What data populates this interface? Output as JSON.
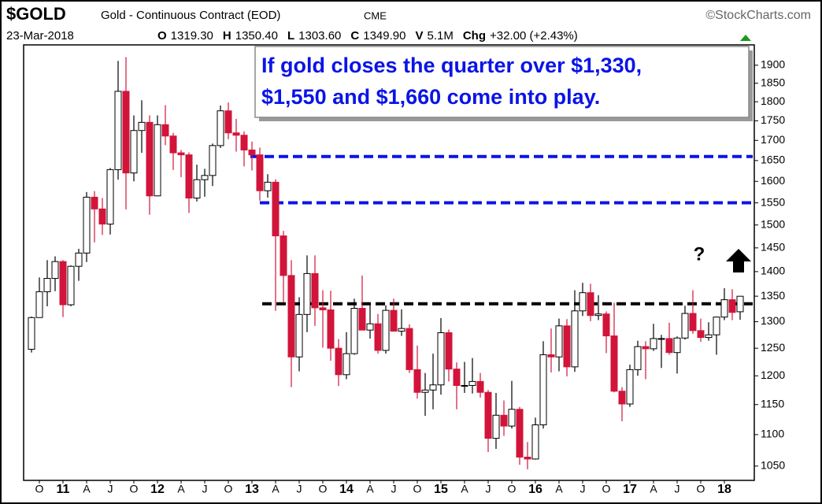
{
  "chart_data": {
    "type": "candlestick",
    "title": "$GOLD",
    "subtitle": "Gold - Continuous Contract (EOD)",
    "exchange": "CME",
    "source": "©StockCharts.com",
    "date": "23-Mar-2018",
    "quote": [
      {
        "label": "O",
        "value": "1319.30"
      },
      {
        "label": "H",
        "value": "1350.40"
      },
      {
        "label": "L",
        "value": "1303.60"
      },
      {
        "label": "C",
        "value": "1349.90"
      },
      {
        "label": "V",
        "value": "5.1M"
      },
      {
        "label": "Chg",
        "value": "+32.00 (+2.43%)"
      }
    ],
    "annotation": [
      "If gold closes the quarter over $1,330,",
      "$1,550 and $1,660 come into play."
    ],
    "question": "?",
    "x": [
      "2010-09",
      "2010-10",
      "2010-11",
      "2010-12",
      "2011-01",
      "2011-02",
      "2011-03",
      "2011-04",
      "2011-05",
      "2011-06",
      "2011-07",
      "2011-08",
      "2011-09",
      "2011-10",
      "2011-11",
      "2011-12",
      "2012-01",
      "2012-02",
      "2012-03",
      "2012-04",
      "2012-05",
      "2012-06",
      "2012-07",
      "2012-08",
      "2012-09",
      "2012-10",
      "2012-11",
      "2012-12",
      "2013-01",
      "2013-02",
      "2013-03",
      "2013-04",
      "2013-05",
      "2013-06",
      "2013-07",
      "2013-08",
      "2013-09",
      "2013-10",
      "2013-11",
      "2013-12",
      "2014-01",
      "2014-02",
      "2014-03",
      "2014-04",
      "2014-05",
      "2014-06",
      "2014-07",
      "2014-08",
      "2014-09",
      "2014-10",
      "2014-11",
      "2014-12",
      "2015-01",
      "2015-02",
      "2015-03",
      "2015-04",
      "2015-05",
      "2015-06",
      "2015-07",
      "2015-08",
      "2015-09",
      "2015-10",
      "2015-11",
      "2015-12",
      "2016-01",
      "2016-02",
      "2016-03",
      "2016-04",
      "2016-05",
      "2016-06",
      "2016-07",
      "2016-08",
      "2016-09",
      "2016-10",
      "2016-11",
      "2016-12",
      "2017-01",
      "2017-02",
      "2017-03",
      "2017-04",
      "2017-05",
      "2017-06",
      "2017-07",
      "2017-08",
      "2017-09",
      "2017-10",
      "2017-11",
      "2017-12",
      "2018-01",
      "2018-02",
      "2018-03"
    ],
    "open": [
      1248,
      1308,
      1359,
      1386,
      1421,
      1333,
      1411,
      1439,
      1563,
      1536,
      1502,
      1628,
      1828,
      1620,
      1725,
      1746,
      1566,
      1740,
      1711,
      1669,
      1664,
      1561,
      1604,
      1614,
      1687,
      1776,
      1719,
      1713,
      1676,
      1664,
      1578,
      1598,
      1476,
      1392,
      1234,
      1314,
      1396,
      1327,
      1323,
      1250,
      1202,
      1240,
      1326,
      1284,
      1296,
      1246,
      1322,
      1282,
      1287,
      1211,
      1171,
      1175,
      1184,
      1279,
      1212,
      1183,
      1183,
      1190,
      1171,
      1094,
      1132,
      1114,
      1142,
      1064,
      1061,
      1116,
      1238,
      1234,
      1292,
      1216,
      1321,
      1357,
      1312,
      1315,
      1273,
      1173,
      1151,
      1211,
      1253,
      1249,
      1268,
      1268,
      1242,
      1269,
      1316,
      1283,
      1270,
      1275,
      1309,
      1343,
      1319.3
    ],
    "high": [
      1310,
      1388,
      1424,
      1432,
      1424,
      1413,
      1448,
      1575,
      1577,
      1561,
      1632,
      1912,
      1923,
      1764,
      1804,
      1764,
      1764,
      1791,
      1719,
      1676,
      1670,
      1640,
      1630,
      1692,
      1790,
      1798,
      1755,
      1723,
      1697,
      1682,
      1617,
      1605,
      1487,
      1424,
      1348,
      1434,
      1434,
      1362,
      1361,
      1267,
      1280,
      1345,
      1392,
      1332,
      1315,
      1332,
      1345,
      1324,
      1295,
      1255,
      1205,
      1240,
      1307,
      1285,
      1224,
      1225,
      1232,
      1205,
      1175,
      1170,
      1157,
      1191,
      1146,
      1088,
      1128,
      1263,
      1287,
      1306,
      1305,
      1362,
      1377,
      1375,
      1352,
      1320,
      1337,
      1180,
      1220,
      1264,
      1263,
      1296,
      1275,
      1298,
      1272,
      1331,
      1362,
      1306,
      1299,
      1310,
      1366,
      1364,
      1350.4
    ],
    "low": [
      1242,
      1314,
      1330,
      1360,
      1309,
      1330,
      1381,
      1420,
      1462,
      1478,
      1479,
      1604,
      1535,
      1600,
      1669,
      1523,
      1565,
      1688,
      1627,
      1610,
      1527,
      1553,
      1564,
      1589,
      1681,
      1703,
      1672,
      1636,
      1626,
      1555,
      1562,
      1321,
      1339,
      1180,
      1208,
      1280,
      1292,
      1251,
      1227,
      1182,
      1194,
      1238,
      1286,
      1268,
      1240,
      1240,
      1281,
      1273,
      1205,
      1160,
      1131,
      1142,
      1167,
      1190,
      1142,
      1170,
      1169,
      1162,
      1072,
      1077,
      1098,
      1110,
      1052,
      1045,
      1060,
      1110,
      1206,
      1208,
      1199,
      1207,
      1311,
      1301,
      1303,
      1241,
      1171,
      1122,
      1146,
      1200,
      1194,
      1245,
      1214,
      1238,
      1204,
      1266,
      1277,
      1262,
      1264,
      1238,
      1303,
      1303,
      1303.6
    ],
    "close": [
      1308,
      1359,
      1386,
      1421,
      1333,
      1411,
      1439,
      1563,
      1536,
      1502,
      1628,
      1828,
      1620,
      1725,
      1746,
      1566,
      1740,
      1711,
      1669,
      1664,
      1561,
      1604,
      1614,
      1687,
      1776,
      1719,
      1713,
      1676,
      1664,
      1578,
      1598,
      1476,
      1392,
      1234,
      1314,
      1396,
      1327,
      1323,
      1250,
      1202,
      1240,
      1326,
      1284,
      1296,
      1246,
      1322,
      1282,
      1287,
      1211,
      1171,
      1175,
      1184,
      1279,
      1212,
      1183,
      1183,
      1190,
      1171,
      1094,
      1132,
      1114,
      1142,
      1064,
      1061,
      1116,
      1238,
      1234,
      1292,
      1216,
      1321,
      1357,
      1312,
      1315,
      1273,
      1173,
      1151,
      1211,
      1253,
      1249,
      1268,
      1268,
      1242,
      1269,
      1316,
      1283,
      1270,
      1275,
      1309,
      1343,
      1318,
      1349.9
    ],
    "up_color": "#ffffff",
    "down_color": "#d2143a",
    "levels": [
      {
        "value": 1660,
        "color": "#0a14e6"
      },
      {
        "value": 1550,
        "color": "#0a14e6"
      },
      {
        "value": 1335,
        "color": "#000000"
      }
    ],
    "log_scale": true,
    "ylim": [
      1028,
      1958
    ],
    "yticks": [
      1050,
      1100,
      1150,
      1200,
      1250,
      1300,
      1350,
      1400,
      1450,
      1500,
      1550,
      1600,
      1650,
      1700,
      1750,
      1800,
      1850,
      1900
    ],
    "xticks": [
      {
        "value": "2010-10",
        "label": "O"
      },
      {
        "value": "2011-01",
        "label": "11"
      },
      {
        "value": "2011-04",
        "label": "A"
      },
      {
        "value": "2011-07",
        "label": "J"
      },
      {
        "value": "2011-10",
        "label": "O"
      },
      {
        "value": "2012-01",
        "label": "12"
      },
      {
        "value": "2012-04",
        "label": "A"
      },
      {
        "value": "2012-07",
        "label": "J"
      },
      {
        "value": "2012-10",
        "label": "O"
      },
      {
        "value": "2013-01",
        "label": "13"
      },
      {
        "value": "2013-04",
        "label": "A"
      },
      {
        "value": "2013-07",
        "label": "J"
      },
      {
        "value": "2013-10",
        "label": "O"
      },
      {
        "value": "2014-01",
        "label": "14"
      },
      {
        "value": "2014-04",
        "label": "A"
      },
      {
        "value": "2014-07",
        "label": "J"
      },
      {
        "value": "2014-10",
        "label": "O"
      },
      {
        "value": "2015-01",
        "label": "15"
      },
      {
        "value": "2015-04",
        "label": "A"
      },
      {
        "value": "2015-07",
        "label": "J"
      },
      {
        "value": "2015-10",
        "label": "O"
      },
      {
        "value": "2016-01",
        "label": "16"
      },
      {
        "value": "2016-04",
        "label": "A"
      },
      {
        "value": "2016-07",
        "label": "J"
      },
      {
        "value": "2016-10",
        "label": "O"
      },
      {
        "value": "2017-01",
        "label": "17"
      },
      {
        "value": "2017-04",
        "label": "A"
      },
      {
        "value": "2017-07",
        "label": "J"
      },
      {
        "value": "2017-10",
        "label": "O"
      },
      {
        "value": "2018-01",
        "label": "18"
      }
    ]
  }
}
